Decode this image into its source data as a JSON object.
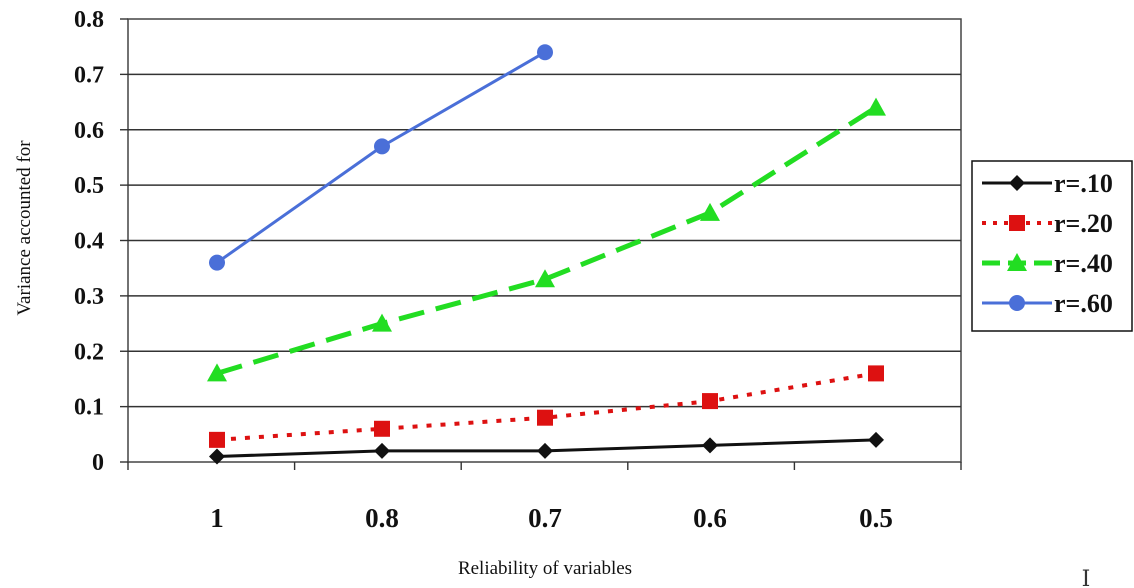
{
  "chart_data": {
    "type": "line",
    "title": "",
    "xlabel": "Reliability of variables",
    "ylabel": "Variance accounted for",
    "categories": [
      "1",
      "0.8",
      "0.7",
      "0.6",
      "0.5"
    ],
    "ylim": [
      0,
      0.8
    ],
    "yticks": [
      "0",
      "0.1",
      "0.2",
      "0.3",
      "0.4",
      "0.5",
      "0.6",
      "0.7",
      "0.8"
    ],
    "grid": "horizontal",
    "legend_position": "right",
    "series": [
      {
        "name": "r=.10",
        "values": [
          0.01,
          0.02,
          0.02,
          0.03,
          0.04
        ],
        "color": "#111111",
        "marker": "diamond",
        "line": "solid"
      },
      {
        "name": "r=.20",
        "values": [
          0.04,
          0.06,
          0.08,
          0.11,
          0.16
        ],
        "color": "#dd1111",
        "marker": "square",
        "line": "dotted"
      },
      {
        "name": "r=.40",
        "values": [
          0.16,
          0.25,
          0.33,
          0.45,
          0.64
        ],
        "color": "#22dd22",
        "marker": "triangle",
        "line": "dashed"
      },
      {
        "name": "r=.60",
        "values": [
          0.36,
          0.57,
          0.74,
          null,
          null
        ],
        "color": "#4a6fd8",
        "marker": "circle",
        "line": "solid"
      }
    ]
  }
}
